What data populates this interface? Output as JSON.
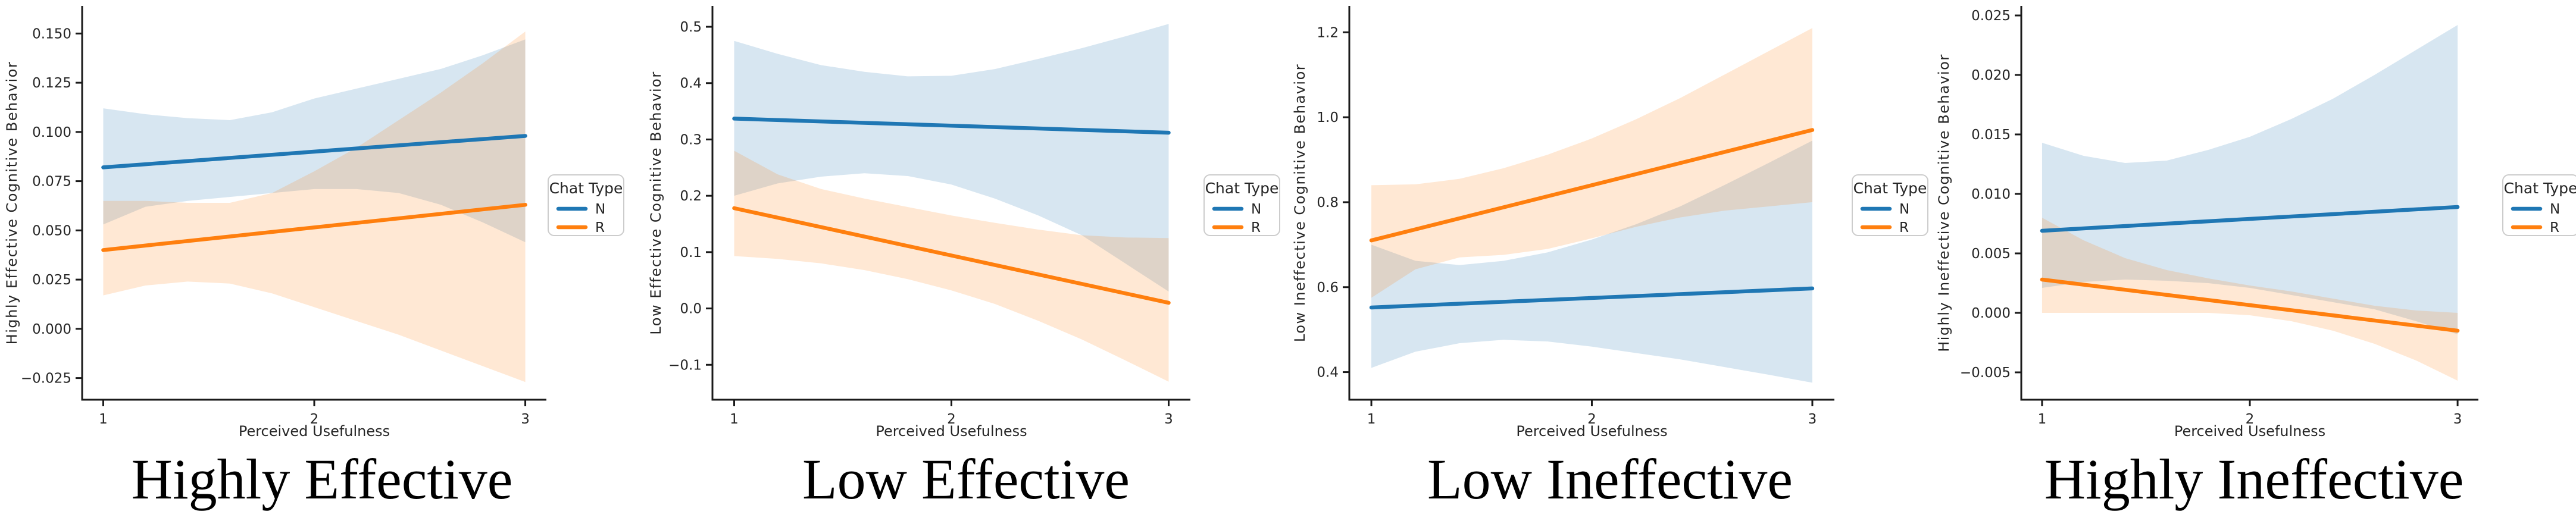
{
  "figure": {
    "background": "#ffffff",
    "xlabel": "Perceived Usefulness"
  },
  "colors": {
    "n_series": "#1f77b4",
    "r_series": "#ff7f0e",
    "band_alpha": 0.18,
    "spine": "#1a1a1a",
    "text": "#262626",
    "legend_border": "#cccccc",
    "background": "#ffffff"
  },
  "legend": {
    "title": "Chat Type",
    "entries": [
      {
        "label": "N",
        "color": "#1f77b4"
      },
      {
        "label": "R",
        "color": "#ff7f0e"
      }
    ]
  },
  "chart_data": [
    {
      "type": "line",
      "caption": "Highly Effective",
      "xlabel": "Perceived Usefulness",
      "ylabel": "Highly Effective Cognitive Behavior",
      "xlim": [
        0.9,
        3.1
      ],
      "ylim": [
        -0.036,
        0.164
      ],
      "xticks": [
        1,
        2,
        3
      ],
      "xtick_labels": [
        "1",
        "2",
        "3"
      ],
      "yticks": [
        -0.025,
        0.0,
        0.025,
        0.05,
        0.075,
        0.1,
        0.125,
        0.15
      ],
      "ytick_labels": [
        "−0.025",
        "0.000",
        "0.025",
        "0.050",
        "0.075",
        "0.100",
        "0.125",
        "0.150"
      ],
      "grid": false,
      "legend_position": "right",
      "series": [
        {
          "name": "N",
          "color": "#1f77b4",
          "x": [
            1,
            3
          ],
          "y": [
            0.082,
            0.098
          ],
          "ci": {
            "x": [
              1,
              1.2,
              1.4,
              1.6,
              1.8,
              2,
              2.2,
              2.4,
              2.6,
              2.8,
              3
            ],
            "hi": [
              0.112,
              0.109,
              0.107,
              0.106,
              0.11,
              0.117,
              0.122,
              0.127,
              0.132,
              0.139,
              0.147
            ],
            "lo": [
              0.053,
              0.062,
              0.065,
              0.067,
              0.069,
              0.071,
              0.071,
              0.069,
              0.063,
              0.054,
              0.044
            ]
          }
        },
        {
          "name": "R",
          "color": "#ff7f0e",
          "x": [
            1,
            3
          ],
          "y": [
            0.04,
            0.063
          ],
          "ci": {
            "x": [
              1,
              1.2,
              1.4,
              1.6,
              1.8,
              2,
              2.2,
              2.4,
              2.6,
              2.8,
              3
            ],
            "hi": [
              0.065,
              0.065,
              0.064,
              0.064,
              0.069,
              0.08,
              0.092,
              0.106,
              0.12,
              0.135,
              0.151
            ],
            "lo": [
              0.017,
              0.022,
              0.024,
              0.023,
              0.018,
              0.011,
              0.004,
              -0.003,
              -0.011,
              -0.019,
              -0.027
            ]
          }
        }
      ]
    },
    {
      "type": "line",
      "caption": "Low Effective",
      "xlabel": "Perceived Usefulness",
      "ylabel": "Low Effective Cognitive Behavior",
      "xlim": [
        0.9,
        3.1
      ],
      "ylim": [
        -0.162,
        0.537
      ],
      "xticks": [
        1,
        2,
        3
      ],
      "xtick_labels": [
        "1",
        "2",
        "3"
      ],
      "yticks": [
        -0.1,
        0.0,
        0.1,
        0.2,
        0.3,
        0.4,
        0.5
      ],
      "ytick_labels": [
        "−0.1",
        "0.0",
        "0.1",
        "0.2",
        "0.3",
        "0.4",
        "0.5"
      ],
      "grid": false,
      "legend_position": "right",
      "series": [
        {
          "name": "N",
          "color": "#1f77b4",
          "x": [
            1,
            3
          ],
          "y": [
            0.337,
            0.312
          ],
          "ci": {
            "x": [
              1,
              1.2,
              1.4,
              1.6,
              1.8,
              2,
              2.2,
              2.4,
              2.6,
              2.8,
              3
            ],
            "hi": [
              0.475,
              0.452,
              0.432,
              0.42,
              0.412,
              0.413,
              0.425,
              0.443,
              0.462,
              0.483,
              0.505
            ],
            "lo": [
              0.2,
              0.222,
              0.234,
              0.24,
              0.235,
              0.22,
              0.195,
              0.165,
              0.13,
              0.08,
              0.03
            ]
          }
        },
        {
          "name": "R",
          "color": "#ff7f0e",
          "x": [
            1,
            3
          ],
          "y": [
            0.178,
            0.01
          ],
          "ci": {
            "x": [
              1,
              1.2,
              1.4,
              1.6,
              1.8,
              2,
              2.2,
              2.4,
              2.6,
              2.8,
              3
            ],
            "hi": [
              0.28,
              0.238,
              0.212,
              0.195,
              0.18,
              0.165,
              0.152,
              0.14,
              0.13,
              0.126,
              0.125
            ],
            "lo": [
              0.093,
              0.088,
              0.08,
              0.068,
              0.052,
              0.032,
              0.008,
              -0.022,
              -0.055,
              -0.092,
              -0.13
            ]
          }
        }
      ]
    },
    {
      "type": "line",
      "caption": "Low Ineffective",
      "xlabel": "Perceived Usefulness",
      "ylabel": "Low Ineffective Cognitive Behavior",
      "xlim": [
        0.9,
        3.1
      ],
      "ylim": [
        0.335,
        1.262
      ],
      "xticks": [
        1,
        2,
        3
      ],
      "xtick_labels": [
        "1",
        "2",
        "3"
      ],
      "yticks": [
        0.4,
        0.6,
        0.8,
        1.0,
        1.2
      ],
      "ytick_labels": [
        "0.4",
        "0.6",
        "0.8",
        "1.0",
        "1.2"
      ],
      "grid": false,
      "legend_position": "right",
      "series": [
        {
          "name": "N",
          "color": "#1f77b4",
          "x": [
            1,
            3
          ],
          "y": [
            0.552,
            0.597
          ],
          "ci": {
            "x": [
              1,
              1.2,
              1.4,
              1.6,
              1.8,
              2,
              2.2,
              2.4,
              2.6,
              2.8,
              3
            ],
            "hi": [
              0.7,
              0.662,
              0.652,
              0.662,
              0.682,
              0.712,
              0.748,
              0.79,
              0.84,
              0.892,
              0.945
            ],
            "lo": [
              0.41,
              0.448,
              0.468,
              0.476,
              0.472,
              0.46,
              0.445,
              0.43,
              0.412,
              0.394,
              0.375
            ]
          }
        },
        {
          "name": "R",
          "color": "#ff7f0e",
          "x": [
            1,
            3
          ],
          "y": [
            0.71,
            0.97
          ],
          "ci": {
            "x": [
              1,
              1.2,
              1.4,
              1.6,
              1.8,
              2,
              2.2,
              2.4,
              2.6,
              2.8,
              3
            ],
            "hi": [
              0.84,
              0.842,
              0.855,
              0.88,
              0.912,
              0.95,
              0.995,
              1.045,
              1.1,
              1.155,
              1.21
            ],
            "lo": [
              0.575,
              0.642,
              0.67,
              0.676,
              0.69,
              0.715,
              0.742,
              0.764,
              0.78,
              0.79,
              0.8
            ]
          }
        }
      ]
    },
    {
      "type": "line",
      "caption": "Highly Ineffective",
      "xlabel": "Perceived Usefulness",
      "ylabel": "Highly Ineffective Cognitive Behavior",
      "xlim": [
        0.9,
        3.1
      ],
      "ylim": [
        -0.0073,
        0.0258
      ],
      "xticks": [
        1,
        2,
        3
      ],
      "xtick_labels": [
        "1",
        "2",
        "3"
      ],
      "yticks": [
        -0.005,
        0.0,
        0.005,
        0.01,
        0.015,
        0.02,
        0.025
      ],
      "ytick_labels": [
        "−0.005",
        "0.000",
        "0.005",
        "0.010",
        "0.015",
        "0.020",
        "0.025"
      ],
      "grid": false,
      "legend_position": "right",
      "series": [
        {
          "name": "N",
          "color": "#1f77b4",
          "x": [
            1,
            3
          ],
          "y": [
            0.0069,
            0.0089
          ],
          "ci": {
            "x": [
              1,
              1.2,
              1.4,
              1.6,
              1.8,
              2,
              2.2,
              2.4,
              2.6,
              2.8,
              3
            ],
            "hi": [
              0.0143,
              0.0132,
              0.0126,
              0.0128,
              0.0137,
              0.0148,
              0.0163,
              0.018,
              0.02,
              0.0221,
              0.0242
            ],
            "lo": [
              0.0021,
              0.0026,
              0.0028,
              0.0027,
              0.0025,
              0.0021,
              0.0015,
              0.0009,
              0.0003,
              -0.0007,
              -0.0018
            ]
          }
        },
        {
          "name": "R",
          "color": "#ff7f0e",
          "x": [
            1,
            3
          ],
          "y": [
            0.0028,
            -0.0015
          ],
          "ci": {
            "x": [
              1,
              1.2,
              1.4,
              1.6,
              1.8,
              2,
              2.2,
              2.4,
              2.6,
              2.8,
              3
            ],
            "hi": [
              0.008,
              0.0061,
              0.0046,
              0.0036,
              0.0029,
              0.0023,
              0.0018,
              0.0012,
              0.0006,
              0.0002,
              0.0
            ],
            "lo": [
              0.0,
              0.0,
              0.0,
              0.0,
              0.0,
              -0.0002,
              -0.0007,
              -0.0015,
              -0.0026,
              -0.004,
              -0.0057
            ]
          }
        }
      ]
    }
  ]
}
